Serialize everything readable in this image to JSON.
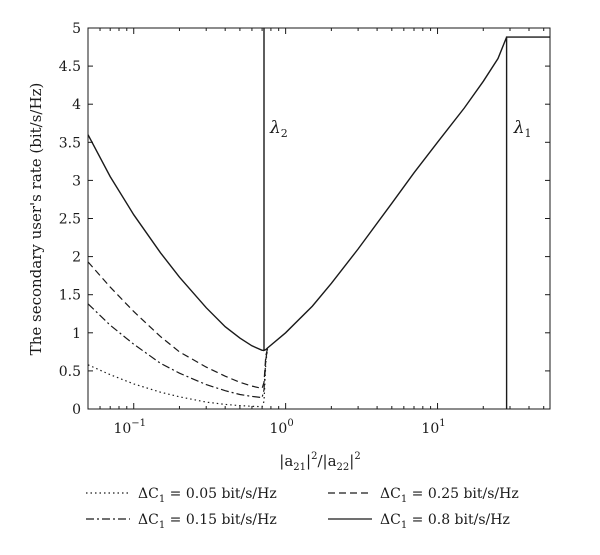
{
  "chart_data": {
    "type": "line",
    "xscale": "log",
    "xlim": [
      0.05,
      55
    ],
    "ylim": [
      0,
      5
    ],
    "grid": false,
    "legend_position": "bottom",
    "ylabel": "The secondary user's rate (bit/s/Hz)",
    "xlabel": "|a21|²/|a22|²",
    "xticks": [
      {
        "value": 0.1,
        "base": "10",
        "exp": "−1"
      },
      {
        "value": 1,
        "base": "10",
        "exp": "0"
      },
      {
        "value": 10,
        "base": "10",
        "exp": "1"
      }
    ],
    "yticks": [
      {
        "value": 0,
        "label": "0"
      },
      {
        "value": 0.5,
        "label": "0.5"
      },
      {
        "value": 1,
        "label": "1"
      },
      {
        "value": 1.5,
        "label": "1.5"
      },
      {
        "value": 2,
        "label": "2"
      },
      {
        "value": 2.5,
        "label": "2.5"
      },
      {
        "value": 3,
        "label": "3"
      },
      {
        "value": 3.5,
        "label": "3.5"
      },
      {
        "value": 4,
        "label": "4"
      },
      {
        "value": 4.5,
        "label": "4.5"
      },
      {
        "value": 5,
        "label": "5"
      }
    ],
    "annotations": [
      {
        "symbol": "λ",
        "sub": "2",
        "x": 0.72,
        "y": 3.7
      },
      {
        "symbol": "λ",
        "sub": "1",
        "x": 29,
        "y": 3.7
      }
    ],
    "series": [
      {
        "name": "ΔC1 = 0.05 bit/s/Hz",
        "style": "dotted",
        "x": [
          0.05,
          0.07,
          0.1,
          0.15,
          0.2,
          0.3,
          0.4,
          0.5,
          0.6,
          0.7,
          0.72,
          0.74,
          0.76
        ],
        "y": [
          0.58,
          0.45,
          0.33,
          0.22,
          0.16,
          0.09,
          0.06,
          0.045,
          0.035,
          0.03,
          0.1,
          0.6,
          0.79
        ]
      },
      {
        "name": "ΔC1 = 0.15 bit/s/Hz",
        "style": "dashdot",
        "x": [
          0.05,
          0.07,
          0.1,
          0.15,
          0.2,
          0.3,
          0.4,
          0.5,
          0.6,
          0.7,
          0.72,
          0.74,
          0.76
        ],
        "y": [
          1.38,
          1.1,
          0.85,
          0.6,
          0.47,
          0.32,
          0.24,
          0.19,
          0.165,
          0.15,
          0.25,
          0.65,
          0.79
        ]
      },
      {
        "name": "ΔC1 = 0.25 bit/s/Hz",
        "style": "dashed",
        "x": [
          0.05,
          0.07,
          0.1,
          0.15,
          0.2,
          0.3,
          0.4,
          0.5,
          0.6,
          0.7,
          0.72,
          0.74,
          0.76
        ],
        "y": [
          1.93,
          1.6,
          1.28,
          0.95,
          0.75,
          0.55,
          0.43,
          0.35,
          0.3,
          0.27,
          0.35,
          0.7,
          0.79
        ]
      },
      {
        "name": "ΔC1 = 0.8 bit/s/Hz",
        "style": "solid",
        "x": [
          0.05,
          0.07,
          0.1,
          0.15,
          0.2,
          0.3,
          0.4,
          0.5,
          0.6,
          0.7,
          0.72,
          0.72,
          0.72,
          0.74,
          0.76,
          1,
          1.5,
          2,
          3,
          5,
          7,
          10,
          15,
          20,
          25,
          28.5,
          28.5,
          28.5,
          29,
          40,
          55
        ],
        "y": [
          3.6,
          3.05,
          2.55,
          2.05,
          1.73,
          1.33,
          1.08,
          0.93,
          0.83,
          0.77,
          0.77,
          5,
          0.77,
          0.78,
          0.8,
          1.0,
          1.35,
          1.65,
          2.1,
          2.7,
          3.1,
          3.5,
          3.95,
          4.3,
          4.6,
          4.88,
          0,
          4.88,
          4.88,
          4.88,
          4.88
        ]
      }
    ]
  }
}
